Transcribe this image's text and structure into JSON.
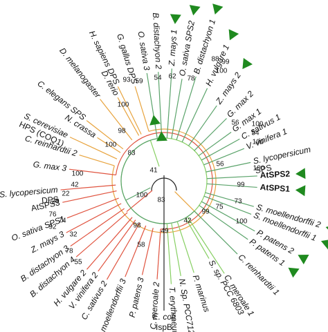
{
  "taxa": [
    [
      "G. gallus DPS"
    ],
    [
      "H. sapiens DPS"
    ],
    [
      "D. rerio"
    ],
    [
      "D. melanogaster"
    ],
    [
      "C. elegans SPS"
    ],
    [
      "N. crassa"
    ],
    [
      "S. cerevisiae",
      "HPS (COQ1)"
    ],
    [
      "C. reinhardtii 2"
    ],
    [
      "G. max 3"
    ],
    [
      "S. lycopersicum",
      "DPS"
    ],
    [
      "AtSPS3"
    ],
    [
      "O. sativa SPS1"
    ],
    [
      "Z. mays 3"
    ],
    [
      "B. distachyon 3"
    ],
    [
      "B. distachyon 4"
    ],
    [
      "H. vulgare 2"
    ],
    [
      "V. vinifera 2"
    ],
    [
      "C. sativus 2"
    ],
    [
      "S. moellendorffii 3"
    ],
    [
      "P. patens 3"
    ],
    [
      "C. meroale 2"
    ],
    [
      "E. coli",
      "IspB"
    ],
    [
      "T. erythraeum"
    ],
    [
      "N. Sp. PCC7120"
    ],
    [
      "P. marinus"
    ],
    [
      "S. sp. PCC 6803"
    ],
    [
      "C. meroale 1"
    ],
    [
      "C. reinhardtii 1"
    ],
    [
      "P. patens 1"
    ],
    [
      "P. patens 2"
    ],
    [
      "S. moellendorffii 1"
    ],
    [
      "S. moellendorffii 2"
    ],
    [
      "AtSPS1"
    ],
    [
      "AtSPS2"
    ],
    [
      "S. lycopersicum",
      "SPS"
    ],
    [
      "V. vinifera 1"
    ],
    [
      "C. sativus 1"
    ],
    [
      "G. max 1"
    ],
    [
      "G. max 2"
    ],
    [
      "Z. mays 2"
    ],
    [
      "H. vulgare 1"
    ],
    [
      "B. distachyon 1"
    ],
    [
      "O. sativa SPS2"
    ],
    [
      "Z. mays 1"
    ],
    [
      "B. distachyon 2"
    ],
    [
      "O. sativa 3"
    ]
  ],
  "bootstrap": [
    93,
    100,
    98,
    100,
    83,
    41,
    100,
    83,
    98,
    58,
    100,
    42,
    22,
    20,
    76,
    92,
    74,
    32,
    78,
    55,
    59,
    54,
    62,
    78,
    88,
    99,
    100,
    56,
    100,
    54,
    100,
    56,
    100,
    99,
    73,
    100,
    75,
    99,
    42,
    49
  ]
}
